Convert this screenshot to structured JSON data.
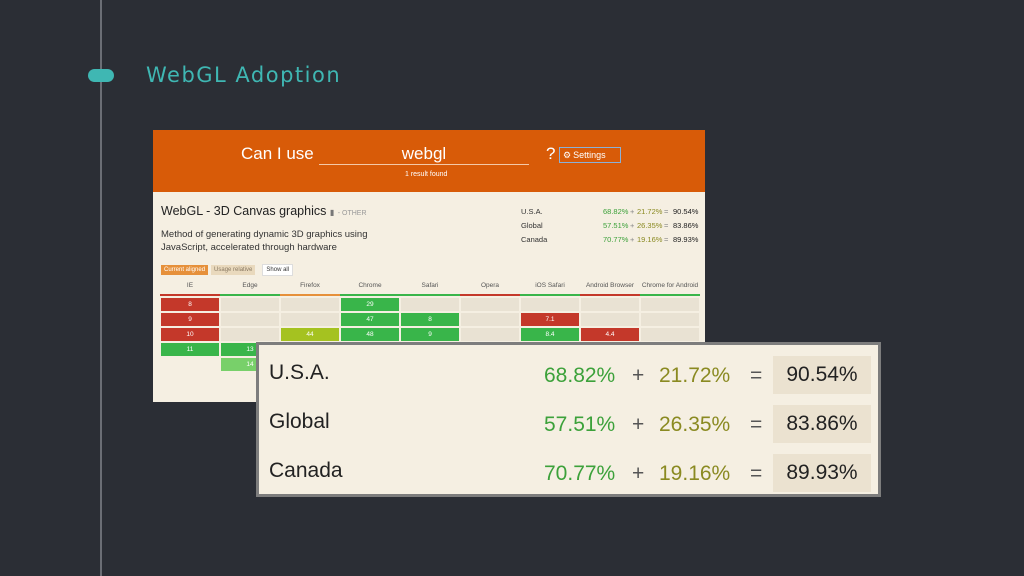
{
  "slide": {
    "title": "WebGL Adoption",
    "accent": "#3fb7b3"
  },
  "caniuse": {
    "header": {
      "prefix": "Can I use",
      "query": "webgl",
      "qmark": "?",
      "settings_label": "Settings",
      "settings_icon": "gear-icon",
      "results": "1 result found",
      "color": "#d85b08"
    },
    "feature": {
      "title": "WebGL - 3D Canvas graphics",
      "tag": "- OTHER",
      "description": "Method of generating dynamic 3D graphics using JavaScript, accelerated through hardware"
    },
    "stats": [
      {
        "country": "U.S.A.",
        "supported": "68.82%",
        "plus": "+",
        "partial": "21.72%",
        "eq": "=",
        "total": "90.54%"
      },
      {
        "country": "Global",
        "supported": "57.51%",
        "plus": "+",
        "partial": "26.35%",
        "eq": "=",
        "total": "83.86%"
      },
      {
        "country": "Canada",
        "supported": "70.77%",
        "plus": "+",
        "partial": "19.16%",
        "eq": "=",
        "total": "89.93%"
      }
    ],
    "filters": {
      "current": "Current aligned",
      "usage": "Usage relative",
      "show_all": "Show all"
    },
    "browsers": [
      {
        "name": "IE",
        "line": "#c4382a",
        "cells": [
          [
            "8",
            "red"
          ],
          [
            "9",
            "red"
          ],
          [
            "10",
            "red"
          ],
          [
            "11",
            "green"
          ]
        ]
      },
      {
        "name": "Edge",
        "line": "#39b54a",
        "cells": [
          [
            "",
            "pale"
          ],
          [
            "",
            "pale"
          ],
          [
            "",
            "pale"
          ],
          [
            "13",
            "green"
          ],
          [
            "14",
            "lgreen"
          ]
        ]
      },
      {
        "name": "Firefox",
        "line": "#e6903a",
        "cells": [
          [
            "",
            "pale"
          ],
          [
            "",
            "pale"
          ],
          [
            "44",
            "lime"
          ]
        ]
      },
      {
        "name": "Chrome",
        "line": "#39b54a",
        "cells": [
          [
            "29",
            "green"
          ],
          [
            "47",
            "green"
          ],
          [
            "48",
            "green"
          ]
        ]
      },
      {
        "name": "Safari",
        "line": "#39b54a",
        "cells": [
          [
            "",
            "pale"
          ],
          [
            "8",
            "green"
          ],
          [
            "9",
            "green"
          ]
        ]
      },
      {
        "name": "Opera",
        "line": "#c4382a",
        "cells": [
          [
            "",
            "pale"
          ],
          [
            "",
            "pale"
          ],
          [
            "",
            "pale"
          ]
        ]
      },
      {
        "name": "iOS Safari",
        "line": "#39b54a",
        "cells": [
          [
            "",
            "pale"
          ],
          [
            "7.1",
            "red"
          ],
          [
            "8.4",
            "green"
          ]
        ]
      },
      {
        "name": "Android Browser",
        "line": "#c4382a",
        "cells": [
          [
            "",
            "pale"
          ],
          [
            "",
            "pale"
          ],
          [
            "4.4",
            "red"
          ]
        ]
      },
      {
        "name": "Chrome for Android",
        "line": "#39b54a",
        "cells": [
          [
            "",
            "pale"
          ],
          [
            "",
            "pale"
          ],
          [
            "",
            "pale"
          ]
        ]
      }
    ]
  }
}
